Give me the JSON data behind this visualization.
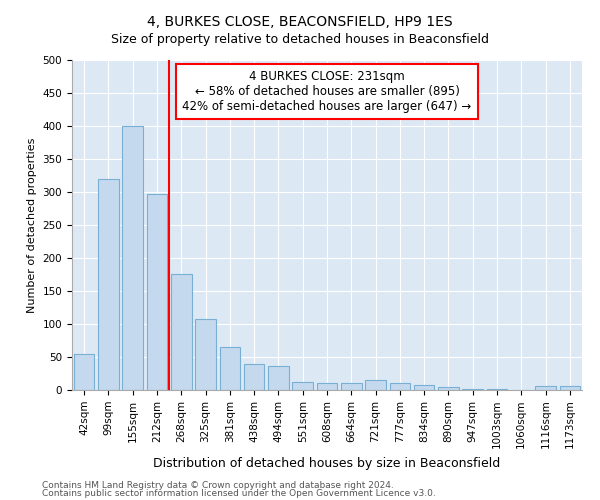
{
  "title": "4, BURKES CLOSE, BEACONSFIELD, HP9 1ES",
  "subtitle": "Size of property relative to detached houses in Beaconsfield",
  "xlabel": "Distribution of detached houses by size in Beaconsfield",
  "ylabel": "Number of detached properties",
  "categories": [
    "42sqm",
    "99sqm",
    "155sqm",
    "212sqm",
    "268sqm",
    "325sqm",
    "381sqm",
    "438sqm",
    "494sqm",
    "551sqm",
    "608sqm",
    "664sqm",
    "721sqm",
    "777sqm",
    "834sqm",
    "890sqm",
    "947sqm",
    "1003sqm",
    "1060sqm",
    "1116sqm",
    "1173sqm"
  ],
  "values": [
    54,
    320,
    400,
    297,
    176,
    108,
    65,
    40,
    37,
    12,
    11,
    11,
    15,
    10,
    8,
    5,
    2,
    1,
    0,
    6,
    6
  ],
  "bar_color": "#c5d9ee",
  "bar_edge_color": "#7aafd4",
  "vline_x": 3.5,
  "vline_color": "red",
  "annotation_text": "4 BURKES CLOSE: 231sqm\n← 58% of detached houses are smaller (895)\n42% of semi-detached houses are larger (647) →",
  "annotation_box_color": "white",
  "annotation_box_edge_color": "red",
  "ylim": [
    0,
    500
  ],
  "yticks": [
    0,
    50,
    100,
    150,
    200,
    250,
    300,
    350,
    400,
    450,
    500
  ],
  "footer1": "Contains HM Land Registry data © Crown copyright and database right 2024.",
  "footer2": "Contains public sector information licensed under the Open Government Licence v3.0.",
  "bg_color": "#dce9f5",
  "title_fontsize": 10,
  "subtitle_fontsize": 9,
  "annotation_fontsize": 8.5,
  "xlabel_fontsize": 9,
  "ylabel_fontsize": 8,
  "tick_fontsize": 7.5,
  "footer_fontsize": 6.5
}
